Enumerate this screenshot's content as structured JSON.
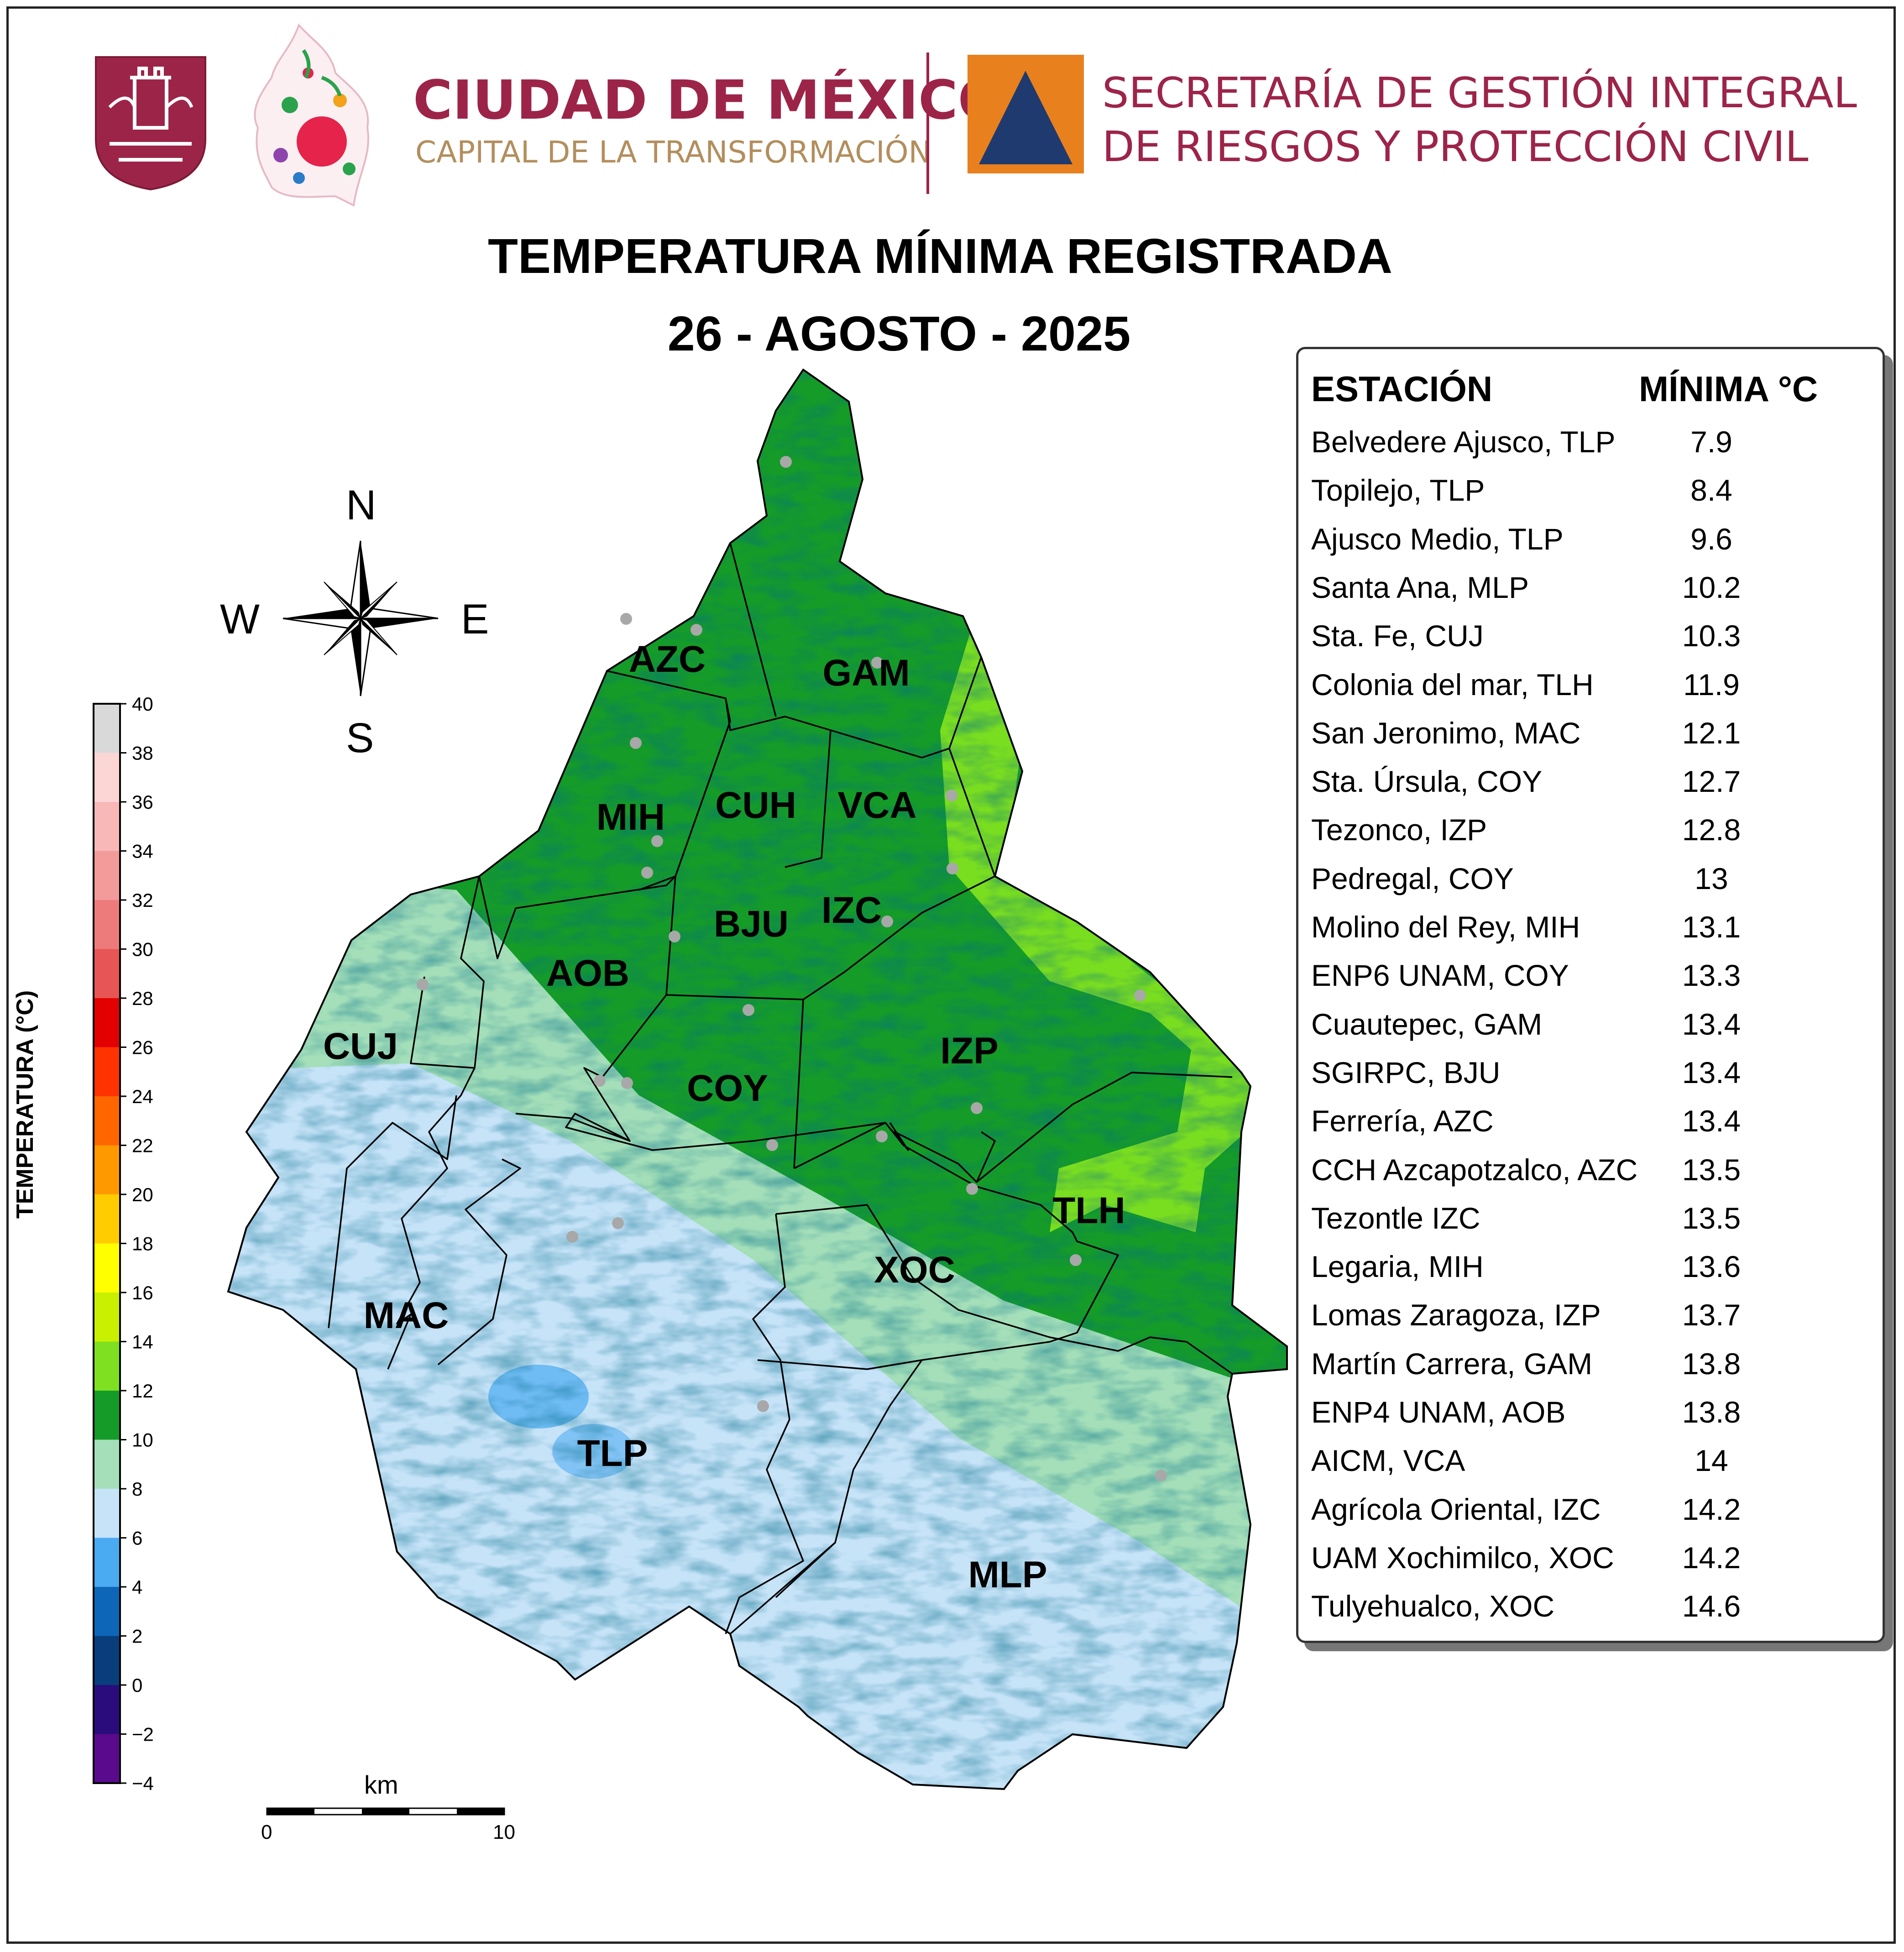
{
  "header": {
    "city_name": "CIUDAD DE MÉXICO",
    "city_tagline": "CAPITAL DE LA TRANSFORMACIÓN",
    "agency_line1": "SECRETARÍA DE GESTIÓN INTEGRAL",
    "agency_line2": "DE RIESGOS Y PROTECCIÓN CIVIL",
    "brand_color": "#9d2449",
    "tagline_color": "#b38e5d",
    "agency_logo_bg": "#e8801e",
    "agency_logo_triangle": "#1f3a6e"
  },
  "title": {
    "line1": "TEMPERATURA MÍNIMA REGISTRADA",
    "line2": "26 - AGOSTO - 2025"
  },
  "compass": {
    "n": "N",
    "s": "S",
    "e": "E",
    "w": "W"
  },
  "legend": {
    "title": "TEMPERATURA (°C)",
    "ticks": [
      "40",
      "38",
      "36",
      "34",
      "32",
      "30",
      "28",
      "26",
      "24",
      "22",
      "20",
      "18",
      "16",
      "14",
      "12",
      "10",
      "8",
      "6",
      "4",
      "2",
      "0",
      "−2",
      "−4"
    ],
    "colors": [
      "#ffffff",
      "#d9d9d9",
      "#fcd5d5",
      "#f9b8b8",
      "#f39a9a",
      "#ee7b7b",
      "#e85555",
      "#e30000",
      "#ff3300",
      "#ff6600",
      "#ff9900",
      "#ffcc00",
      "#ffff00",
      "#c8f000",
      "#7ee020",
      "#159b28",
      "#a4dfb9",
      "#c6e3f8",
      "#4aaaf2",
      "#0e66b8",
      "#083e7c",
      "#2a0c7c",
      "#5a0a8c",
      "#cc66ee"
    ]
  },
  "scale_bar": {
    "unit": "km",
    "min_label": "0",
    "max_label": "10"
  },
  "table": {
    "col_station": "ESTACIÓN",
    "col_min": "MÍNIMA °C",
    "rows": [
      {
        "station": "Belvedere Ajusco, TLP",
        "min": "7.9"
      },
      {
        "station": "Topilejo, TLP",
        "min": "8.4"
      },
      {
        "station": "Ajusco Medio, TLP",
        "min": "9.6"
      },
      {
        "station": "Santa Ana, MLP",
        "min": "10.2"
      },
      {
        "station": "Sta. Fe, CUJ",
        "min": "10.3"
      },
      {
        "station": "Colonia del mar, TLH",
        "min": "11.9"
      },
      {
        "station": "San Jeronimo, MAC",
        "min": "12.1"
      },
      {
        "station": "Sta. Úrsula, COY",
        "min": "12.7"
      },
      {
        "station": "Tezonco, IZP",
        "min": "12.8"
      },
      {
        "station": "Pedregal, COY",
        "min": "13"
      },
      {
        "station": "Molino del Rey, MIH",
        "min": "13.1"
      },
      {
        "station": "ENP6 UNAM,  COY",
        "min": "13.3"
      },
      {
        "station": "Cuautepec, GAM",
        "min": "13.4"
      },
      {
        "station": "SGIRPC, BJU",
        "min": "13.4"
      },
      {
        "station": "Ferrería, AZC",
        "min": "13.4"
      },
      {
        "station": "CCH Azcapotzalco, AZC",
        "min": "13.5"
      },
      {
        "station": "Tezontle IZC",
        "min": "13.5"
      },
      {
        "station": "Legaria, MIH",
        "min": "13.6"
      },
      {
        "station": "Lomas Zaragoza, IZP",
        "min": "13.7"
      },
      {
        "station": "Martín Carrera, GAM",
        "min": "13.8"
      },
      {
        "station": "ENP4 UNAM,  AOB",
        "min": "13.8"
      },
      {
        "station": "AICM, VCA",
        "min": "14"
      },
      {
        "station": "Agrícola Oriental, IZC",
        "min": "14.2"
      },
      {
        "station": "UAM Xochimilco, XOC",
        "min": "14.2"
      },
      {
        "station": "Tulyehualco, XOC",
        "min": "14.6"
      }
    ]
  },
  "map": {
    "boroughs": [
      "AZC",
      "GAM",
      "MIH",
      "CUH",
      "VCA",
      "BJU",
      "IZC",
      "AOB",
      "CUJ",
      "COY",
      "IZP",
      "TLH",
      "XOC",
      "MAC",
      "TLP",
      "MLP"
    ],
    "zone_colors": {
      "green": "#159b28",
      "light_green": "#a4dfb9",
      "lime": "#7ee020",
      "light_blue": "#c6e3f8",
      "blue": "#4aaaf2"
    }
  }
}
